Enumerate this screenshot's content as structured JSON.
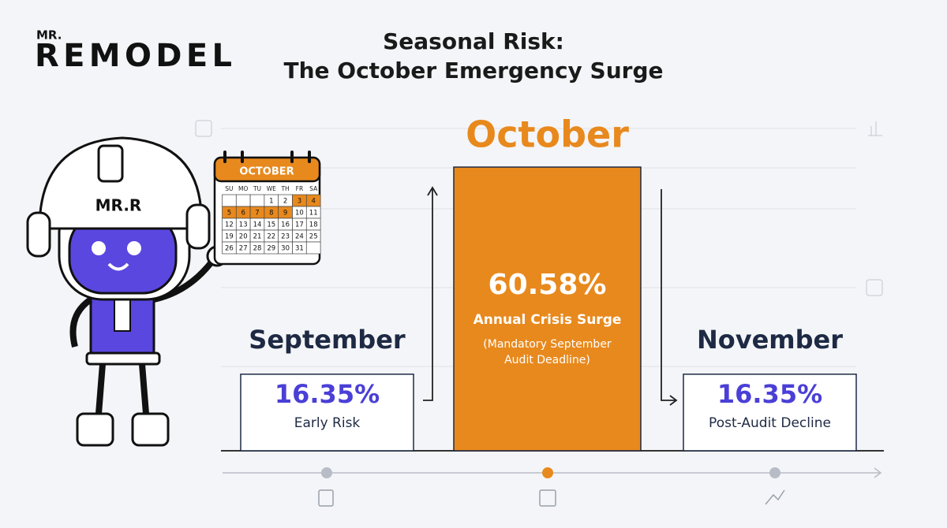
{
  "logo": {
    "top": "MR.",
    "main": "REMODEL"
  },
  "mascot": {
    "helmet": "MR.R"
  },
  "calendar": {
    "month": "OCTOBER",
    "weekdays": [
      "SU",
      "MO",
      "TU",
      "WE",
      "TH",
      "FR",
      "SA"
    ],
    "weeks": [
      [
        null,
        null,
        null,
        1,
        2,
        3,
        4
      ],
      [
        5,
        6,
        7,
        8,
        9,
        10,
        11
      ],
      [
        12,
        13,
        14,
        15,
        16,
        17,
        18
      ],
      [
        19,
        20,
        21,
        22,
        23,
        24,
        25
      ],
      [
        26,
        27,
        28,
        29,
        30,
        31,
        null
      ]
    ],
    "highlighted": [
      3,
      4,
      5,
      6,
      7,
      8,
      9
    ],
    "highlight_color": "#e8891d"
  },
  "chart_data": {
    "type": "bar",
    "title": [
      "Seasonal Risk:",
      "The October Emergency Surge"
    ],
    "categories": [
      "September",
      "October",
      "November"
    ],
    "values": [
      16.35,
      60.58,
      16.35
    ],
    "value_labels": [
      "16.35%",
      "60.58%",
      "16.35%"
    ],
    "sublabels": [
      "Early Risk",
      "Annual Crisis Surge",
      "Post-Audit Decline"
    ],
    "notes": [
      null,
      [
        "(Mandatory September",
        "Audit Deadline)"
      ],
      null
    ],
    "colors": [
      "#ffffff",
      "#e8891d",
      "#ffffff"
    ],
    "category_colors": [
      "#1e2a44",
      "#e8891d",
      "#1e2a44"
    ],
    "value_label_colors": [
      "#4a3fd6",
      "#ffffff",
      "#4a3fd6"
    ],
    "sublabel_colors": [
      "#1e2a44",
      "#ffffff",
      "#1e2a44"
    ]
  }
}
